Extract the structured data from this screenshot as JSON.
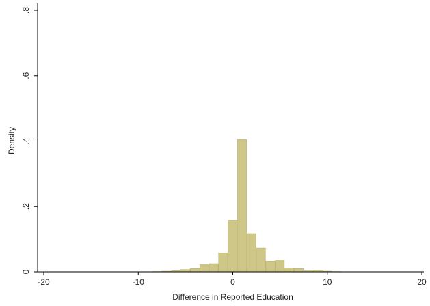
{
  "chart_data": {
    "type": "bar",
    "title": "",
    "xlabel": "Difference in Reported Education",
    "ylabel": "Density",
    "xlim": [
      -20,
      20
    ],
    "ylim": [
      0,
      0.8
    ],
    "grid": false,
    "bar_color": "#cfc787",
    "bar_edge_color": "#b3ad6a",
    "axis_color": "#000000",
    "x_ticks": [
      {
        "value": -20,
        "label": "-20"
      },
      {
        "value": -10,
        "label": "-10"
      },
      {
        "value": 0,
        "label": "0"
      },
      {
        "value": 10,
        "label": "10"
      },
      {
        "value": 20,
        "label": "20"
      }
    ],
    "y_ticks": [
      {
        "value": 0,
        "label": "0"
      },
      {
        "value": 0.2,
        "label": ".2"
      },
      {
        "value": 0.4,
        "label": ".4"
      },
      {
        "value": 0.6,
        "label": ".6"
      },
      {
        "value": 0.8,
        "label": ".8"
      }
    ],
    "bin_width": 1.0,
    "bins": [
      {
        "x0": -8.5,
        "density": 0.001
      },
      {
        "x0": -7.5,
        "density": 0.002
      },
      {
        "x0": -6.5,
        "density": 0.004
      },
      {
        "x0": -5.5,
        "density": 0.007
      },
      {
        "x0": -4.5,
        "density": 0.01
      },
      {
        "x0": -3.5,
        "density": 0.022
      },
      {
        "x0": -2.5,
        "density": 0.025
      },
      {
        "x0": -1.5,
        "density": 0.058
      },
      {
        "x0": -0.5,
        "density": 0.158
      },
      {
        "x0": 0.5,
        "density": 0.405
      },
      {
        "x0": 1.5,
        "density": 0.117
      },
      {
        "x0": 2.5,
        "density": 0.073
      },
      {
        "x0": 3.5,
        "density": 0.033
      },
      {
        "x0": 4.5,
        "density": 0.036
      },
      {
        "x0": 5.5,
        "density": 0.012
      },
      {
        "x0": 6.5,
        "density": 0.01
      },
      {
        "x0": 7.5,
        "density": 0.003
      },
      {
        "x0": 8.5,
        "density": 0.005
      },
      {
        "x0": 9.5,
        "density": 0.002
      },
      {
        "x0": 10.5,
        "density": 0.001
      }
    ]
  }
}
